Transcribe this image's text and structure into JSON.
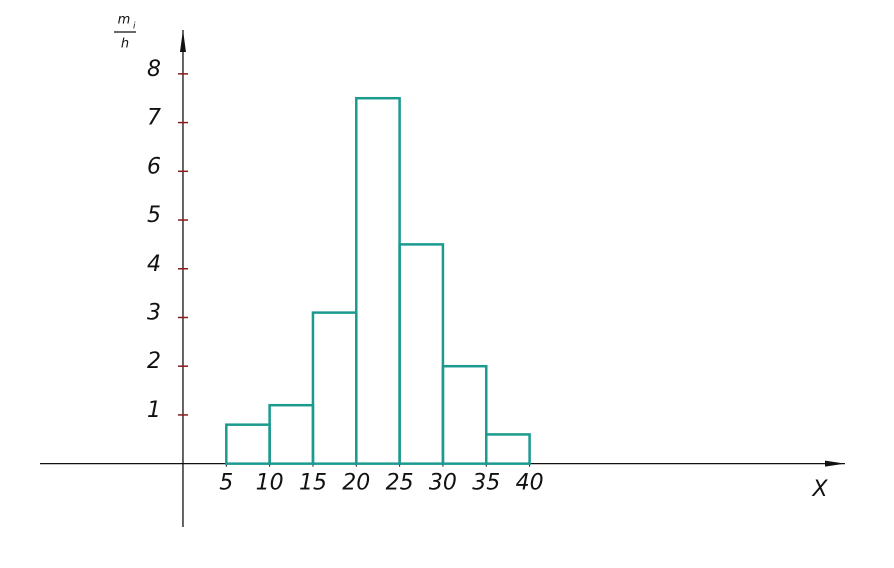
{
  "chart_data": {
    "type": "histogram",
    "ylabel": {
      "numerator": "m",
      "subscript": "i",
      "denominator": "h"
    },
    "xlabel": "X",
    "bins": [
      5,
      10,
      15,
      20,
      25,
      30,
      35,
      40
    ],
    "values": [
      0.8,
      1.2,
      3.1,
      7.5,
      4.5,
      2,
      0.6
    ],
    "color": "#1b9a90",
    "xlim": [
      -16.5,
      76.4
    ],
    "ylim": [
      -1.3,
      8.9
    ],
    "xticks": [
      5,
      10,
      15,
      20,
      25,
      30,
      35,
      40
    ],
    "yticks": [
      1,
      2,
      3,
      4,
      5,
      6,
      7,
      8
    ],
    "grid": false
  }
}
